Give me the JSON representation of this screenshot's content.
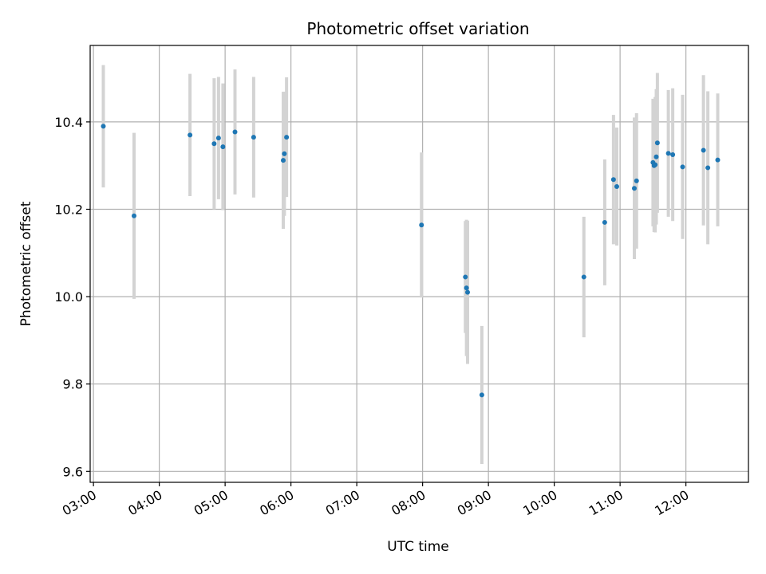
{
  "chart_data": {
    "type": "scatter",
    "title": "Photometric offset variation",
    "xlabel": "UTC time",
    "ylabel": "Photometric offset",
    "x_ticks": [
      "03:00",
      "04:00",
      "05:00",
      "06:00",
      "07:00",
      "08:00",
      "09:00",
      "10:00",
      "11:00",
      "12:00"
    ],
    "y_ticks": [
      "9.6",
      "9.8",
      "10.0",
      "10.2",
      "10.4"
    ],
    "xlim": [
      "02:57",
      "12:57"
    ],
    "ylim": [
      9.575,
      10.575
    ],
    "grid": true,
    "colors": {
      "point": "#1f77b4",
      "errorbar": "#d3d3d3",
      "grid": "#b0b0b0"
    },
    "points": [
      {
        "x": "03:09",
        "y": 10.39,
        "err": 0.14
      },
      {
        "x": "03:37",
        "y": 10.185,
        "err": 0.19
      },
      {
        "x": "04:28",
        "y": 10.37,
        "err": 0.14
      },
      {
        "x": "04:50",
        "y": 10.35,
        "err": 0.15
      },
      {
        "x": "04:54",
        "y": 10.363,
        "err": 0.14
      },
      {
        "x": "04:58",
        "y": 10.343,
        "err": 0.145
      },
      {
        "x": "05:09",
        "y": 10.377,
        "err": 0.143
      },
      {
        "x": "05:26",
        "y": 10.365,
        "err": 0.138
      },
      {
        "x": "05:53",
        "y": 10.312,
        "err": 0.157
      },
      {
        "x": "05:54",
        "y": 10.327,
        "err": 0.142
      },
      {
        "x": "05:56",
        "y": 10.365,
        "err": 0.137
      },
      {
        "x": "07:59",
        "y": 10.164,
        "err": 0.166
      },
      {
        "x": "08:39",
        "y": 10.045,
        "err": 0.128
      },
      {
        "x": "08:40",
        "y": 10.02,
        "err": 0.156
      },
      {
        "x": "08:41",
        "y": 10.01,
        "err": 0.164
      },
      {
        "x": "08:54",
        "y": 9.775,
        "err": 0.158
      },
      {
        "x": "10:27",
        "y": 10.045,
        "err": 0.138
      },
      {
        "x": "10:46",
        "y": 10.17,
        "err": 0.144
      },
      {
        "x": "10:54",
        "y": 10.268,
        "err": 0.148
      },
      {
        "x": "10:57",
        "y": 10.252,
        "err": 0.135
      },
      {
        "x": "11:13",
        "y": 10.248,
        "err": 0.162
      },
      {
        "x": "11:15",
        "y": 10.265,
        "err": 0.155
      },
      {
        "x": "11:30",
        "y": 10.307,
        "err": 0.146
      },
      {
        "x": "11:31",
        "y": 10.3,
        "err": 0.152
      },
      {
        "x": "11:32",
        "y": 10.302,
        "err": 0.155
      },
      {
        "x": "11:33",
        "y": 10.32,
        "err": 0.155
      },
      {
        "x": "11:34",
        "y": 10.352,
        "err": 0.16
      },
      {
        "x": "11:44",
        "y": 10.328,
        "err": 0.145
      },
      {
        "x": "11:48",
        "y": 10.325,
        "err": 0.152
      },
      {
        "x": "11:57",
        "y": 10.297,
        "err": 0.165
      },
      {
        "x": "12:16",
        "y": 10.335,
        "err": 0.172
      },
      {
        "x": "12:20",
        "y": 10.295,
        "err": 0.175
      },
      {
        "x": "12:29",
        "y": 10.313,
        "err": 0.152
      }
    ]
  }
}
